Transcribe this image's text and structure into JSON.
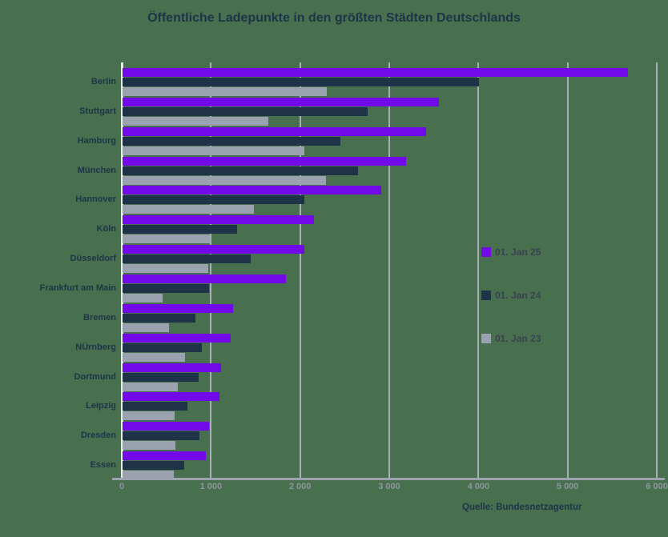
{
  "title": "Öffentliche Ladepunkte in den größten Städten Deutschlands",
  "source": "Quelle: Bundesnetzagentur",
  "colors": {
    "background": "#48704F",
    "title_text": "#1E3448",
    "city_label_text": "#1E3448",
    "axis_tick_text": "#8F959F",
    "gridline": "#A9AFB8",
    "zero_line": "#E8EAED",
    "baseline": "#9CA3AD",
    "legend_text": "#3A4150",
    "source_text": "#1E3448",
    "bar_jan25": "#7109E8",
    "bar_jan24": "#1E3348",
    "bar_jan23": "#9AA2AF"
  },
  "x_axis": {
    "ticks": [
      "0",
      "1 000",
      "2 000",
      "3 000",
      "4 000",
      "5 000",
      "6 000"
    ],
    "values": [
      0,
      1000,
      2000,
      3000,
      4000,
      5000,
      6000
    ],
    "max": 6000
  },
  "legend": {
    "position": "middle-right",
    "items": [
      {
        "label": "01. Jan 25",
        "color": "#7109E8"
      },
      {
        "label": "01. Jan 24",
        "color": "#1E3348"
      },
      {
        "label": "01. Jan 23",
        "color": "#9AA2AF"
      }
    ]
  },
  "chart_data": {
    "type": "bar",
    "orientation": "horizontal",
    "title": "Öffentliche Ladepunkte in den größten Städten Deutschlands",
    "xlabel": "",
    "ylabel": "",
    "xlim": [
      0,
      6000
    ],
    "grid": true,
    "legend_position": "right",
    "categories": [
      "Berlin",
      "Stuttgart",
      "Hamburg",
      "München",
      "Hannover",
      "Köln",
      "Düsseldorf",
      "Frankfurt am Main",
      "Bremen",
      "NÜrnberg",
      "Dortmund",
      "Leipzig",
      "Dresden",
      "Essen"
    ],
    "series": [
      {
        "name": "01. Jan 25",
        "color": "#7109E8",
        "values": [
          5670,
          3550,
          3400,
          3180,
          2900,
          2150,
          2040,
          1830,
          1240,
          1210,
          1100,
          1090,
          970,
          930
        ]
      },
      {
        "name": "01. Jan 24",
        "color": "#1E3348",
        "values": [
          4000,
          2750,
          2440,
          2640,
          2040,
          1280,
          1440,
          970,
          820,
          890,
          850,
          730,
          860,
          690
        ]
      },
      {
        "name": "01. Jan 23",
        "color": "#9AA2AF",
        "values": [
          2290,
          1630,
          2040,
          2280,
          1470,
          980,
          960,
          450,
          520,
          700,
          620,
          580,
          590,
          570
        ]
      }
    ]
  }
}
